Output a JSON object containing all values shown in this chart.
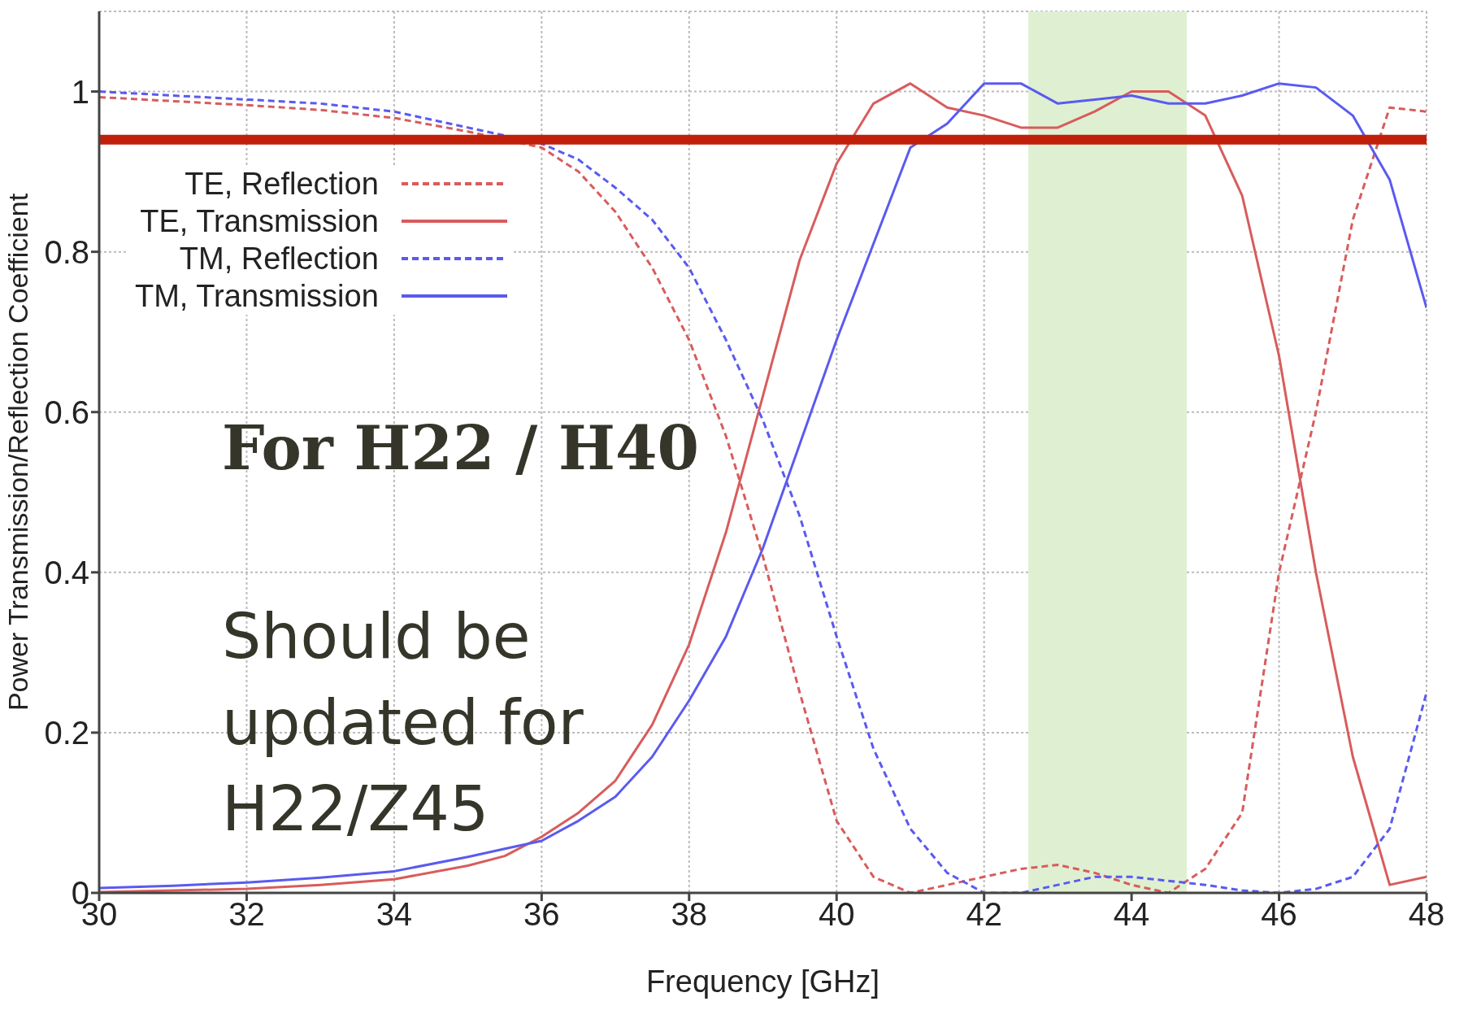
{
  "chart_data": {
    "type": "line",
    "xlabel": "Frequency [GHz]",
    "ylabel": "Power Transmission/Reflection Coefficient",
    "x": [
      30,
      31,
      32,
      33,
      34,
      35,
      35.5,
      36,
      36.5,
      37,
      37.5,
      38,
      38.5,
      39,
      39.5,
      40,
      40.5,
      41,
      41.5,
      42,
      42.5,
      43,
      43.5,
      44,
      44.5,
      45,
      45.5,
      46,
      46.5,
      47,
      47.5,
      48
    ],
    "series": [
      {
        "name": "TE, Reflection",
        "color": "#d85c5c",
        "line_style": "dashed",
        "values": [
          0.993,
          0.988,
          0.983,
          0.977,
          0.967,
          0.95,
          0.94,
          0.93,
          0.9,
          0.85,
          0.78,
          0.69,
          0.57,
          0.42,
          0.25,
          0.09,
          0.02,
          0.0,
          0.01,
          0.02,
          0.03,
          0.035,
          0.025,
          0.01,
          0.0,
          0.03,
          0.1,
          0.4,
          0.6,
          0.84,
          0.98,
          0.975
        ]
      },
      {
        "name": "TE, Transmission",
        "color": "#d85c5c",
        "line_style": "solid",
        "values": [
          0.001,
          0.003,
          0.005,
          0.01,
          0.017,
          0.034,
          0.046,
          0.07,
          0.1,
          0.14,
          0.21,
          0.31,
          0.45,
          0.62,
          0.79,
          0.91,
          0.985,
          1.01,
          0.98,
          0.97,
          0.955,
          0.955,
          0.975,
          1.0,
          1.0,
          0.97,
          0.87,
          0.67,
          0.4,
          0.17,
          0.01,
          0.02
        ]
      },
      {
        "name": "TM, Reflection",
        "color": "#5a5af0",
        "line_style": "dashed",
        "values": [
          1.0,
          0.995,
          0.99,
          0.985,
          0.975,
          0.955,
          0.945,
          0.935,
          0.915,
          0.88,
          0.84,
          0.78,
          0.69,
          0.59,
          0.47,
          0.32,
          0.18,
          0.08,
          0.025,
          0.0,
          0.0,
          0.01,
          0.02,
          0.02,
          0.015,
          0.01,
          0.003,
          0.0,
          0.005,
          0.02,
          0.08,
          0.25
        ]
      },
      {
        "name": "TM, Transmission",
        "color": "#5a5af0",
        "line_style": "solid",
        "values": [
          0.006,
          0.009,
          0.013,
          0.019,
          0.027,
          0.045,
          0.055,
          0.065,
          0.09,
          0.12,
          0.17,
          0.24,
          0.32,
          0.43,
          0.56,
          0.69,
          0.81,
          0.93,
          0.96,
          1.01,
          1.01,
          0.985,
          0.99,
          0.995,
          0.985,
          0.985,
          0.995,
          1.01,
          1.005,
          0.97,
          0.89,
          0.73
        ]
      }
    ],
    "xlim": [
      30,
      48
    ],
    "xticks": [
      30,
      32,
      34,
      36,
      38,
      40,
      42,
      44,
      46,
      48
    ],
    "ylim": [
      0,
      1.1
    ],
    "yticks": [
      0,
      0.2,
      0.4,
      0.6,
      0.8,
      1
    ],
    "grid": true,
    "legend": "top left",
    "marker": "none",
    "ref_lines": [
      {
        "axis": "y",
        "value": 0.94,
        "color": "#c0200a"
      }
    ],
    "bands": [
      {
        "axis": "x",
        "from": 42.6,
        "to": 44.75,
        "color": "#dff0d2"
      }
    ],
    "annotations": [
      "For H22 / H40",
      "Should be updated for H22/Z45"
    ]
  }
}
